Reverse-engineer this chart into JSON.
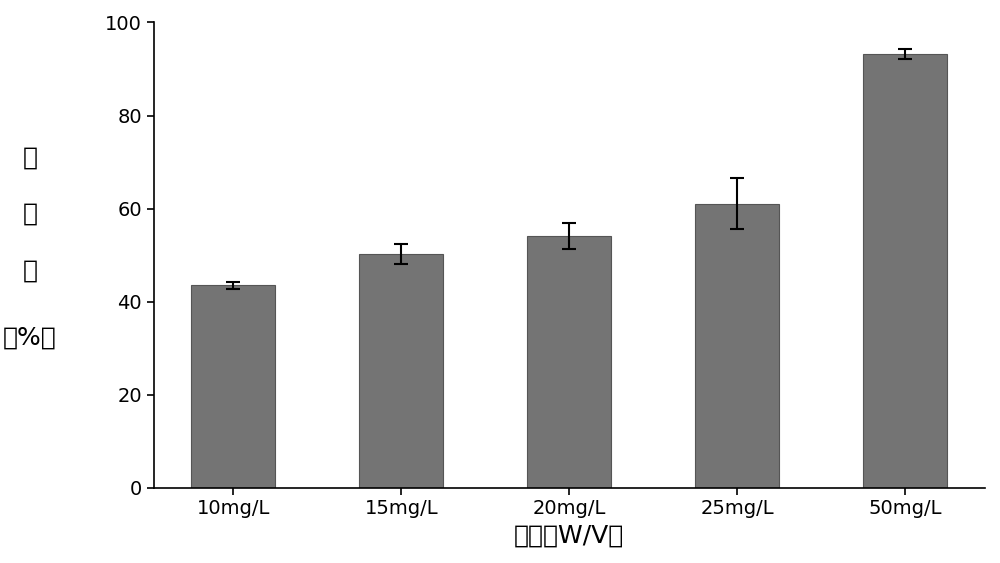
{
  "categories": [
    "10mg/L",
    "15mg/L",
    "20mg/L",
    "25mg/L",
    "50mg/L"
  ],
  "values": [
    43.5,
    50.2,
    54.2,
    61.0,
    93.2
  ],
  "errors": [
    0.7,
    2.2,
    2.8,
    5.5,
    1.0
  ],
  "bar_color": "#747474",
  "bar_edgecolor": "#555555",
  "ylabel_text": "抑菌率（%）",
  "xlabel": "浓度（W/V）",
  "ylim": [
    0,
    100
  ],
  "yticks": [
    0,
    20,
    40,
    60,
    80,
    100
  ],
  "label_fontsize": 18,
  "tick_fontsize": 14,
  "bar_width": 0.5
}
